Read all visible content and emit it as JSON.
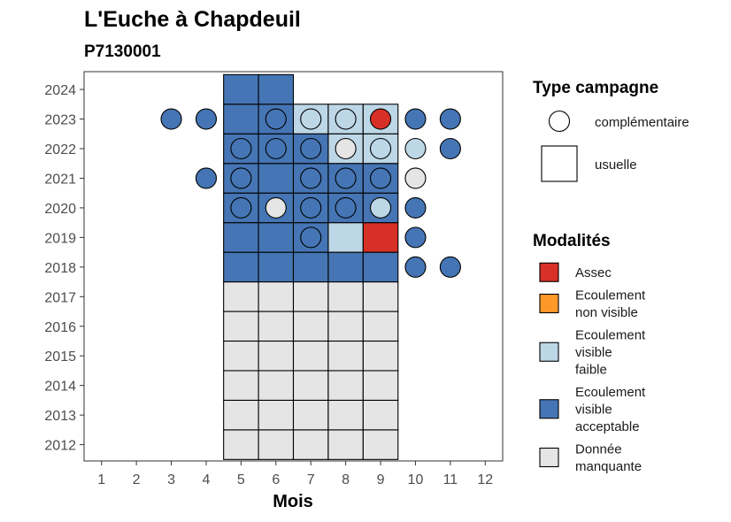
{
  "chart_data": {
    "type": "heatmap",
    "title": "L'Euche à Chapdeuil",
    "subtitle": "P7130001",
    "xlabel": "Mois",
    "ylabel": "",
    "x_ticks": [
      1,
      2,
      3,
      4,
      5,
      6,
      7,
      8,
      9,
      10,
      11,
      12
    ],
    "y_ticks": [
      2012,
      2013,
      2014,
      2015,
      2016,
      2017,
      2018,
      2019,
      2020,
      2021,
      2022,
      2023,
      2024
    ],
    "xlim": [
      0.5,
      12.5
    ],
    "ylim": [
      2011.45,
      2024.6
    ],
    "grid": false,
    "colors": {
      "Assec": "#d73027",
      "Ecoulement non visible": "#fe9929",
      "Ecoulement visible faible": "#bdd7e7",
      "Ecoulement visible acceptable": "#4575b4",
      "Donnée manquante": "#e5e5e5"
    },
    "campaign_types": {
      "complementaire": "complémentaire",
      "usuelle": "usuelle"
    },
    "usuelle": [
      {
        "year": 2012,
        "month": 5,
        "modalite": "Donnée manquante"
      },
      {
        "year": 2012,
        "month": 6,
        "modalite": "Donnée manquante"
      },
      {
        "year": 2012,
        "month": 7,
        "modalite": "Donnée manquante"
      },
      {
        "year": 2012,
        "month": 8,
        "modalite": "Donnée manquante"
      },
      {
        "year": 2012,
        "month": 9,
        "modalite": "Donnée manquante"
      },
      {
        "year": 2013,
        "month": 5,
        "modalite": "Donnée manquante"
      },
      {
        "year": 2013,
        "month": 6,
        "modalite": "Donnée manquante"
      },
      {
        "year": 2013,
        "month": 7,
        "modalite": "Donnée manquante"
      },
      {
        "year": 2013,
        "month": 8,
        "modalite": "Donnée manquante"
      },
      {
        "year": 2013,
        "month": 9,
        "modalite": "Donnée manquante"
      },
      {
        "year": 2014,
        "month": 5,
        "modalite": "Donnée manquante"
      },
      {
        "year": 2014,
        "month": 6,
        "modalite": "Donnée manquante"
      },
      {
        "year": 2014,
        "month": 7,
        "modalite": "Donnée manquante"
      },
      {
        "year": 2014,
        "month": 8,
        "modalite": "Donnée manquante"
      },
      {
        "year": 2014,
        "month": 9,
        "modalite": "Donnée manquante"
      },
      {
        "year": 2015,
        "month": 5,
        "modalite": "Donnée manquante"
      },
      {
        "year": 2015,
        "month": 6,
        "modalite": "Donnée manquante"
      },
      {
        "year": 2015,
        "month": 7,
        "modalite": "Donnée manquante"
      },
      {
        "year": 2015,
        "month": 8,
        "modalite": "Donnée manquante"
      },
      {
        "year": 2015,
        "month": 9,
        "modalite": "Donnée manquante"
      },
      {
        "year": 2016,
        "month": 5,
        "modalite": "Donnée manquante"
      },
      {
        "year": 2016,
        "month": 6,
        "modalite": "Donnée manquante"
      },
      {
        "year": 2016,
        "month": 7,
        "modalite": "Donnée manquante"
      },
      {
        "year": 2016,
        "month": 8,
        "modalite": "Donnée manquante"
      },
      {
        "year": 2016,
        "month": 9,
        "modalite": "Donnée manquante"
      },
      {
        "year": 2017,
        "month": 5,
        "modalite": "Donnée manquante"
      },
      {
        "year": 2017,
        "month": 6,
        "modalite": "Donnée manquante"
      },
      {
        "year": 2017,
        "month": 7,
        "modalite": "Donnée manquante"
      },
      {
        "year": 2017,
        "month": 8,
        "modalite": "Donnée manquante"
      },
      {
        "year": 2017,
        "month": 9,
        "modalite": "Donnée manquante"
      },
      {
        "year": 2018,
        "month": 5,
        "modalite": "Ecoulement visible acceptable"
      },
      {
        "year": 2018,
        "month": 6,
        "modalite": "Ecoulement visible acceptable"
      },
      {
        "year": 2018,
        "month": 7,
        "modalite": "Ecoulement visible acceptable"
      },
      {
        "year": 2018,
        "month": 8,
        "modalite": "Ecoulement visible acceptable"
      },
      {
        "year": 2018,
        "month": 9,
        "modalite": "Ecoulement visible acceptable"
      },
      {
        "year": 2019,
        "month": 5,
        "modalite": "Ecoulement visible acceptable"
      },
      {
        "year": 2019,
        "month": 6,
        "modalite": "Ecoulement visible acceptable"
      },
      {
        "year": 2019,
        "month": 7,
        "modalite": "Ecoulement visible acceptable"
      },
      {
        "year": 2019,
        "month": 8,
        "modalite": "Ecoulement visible faible"
      },
      {
        "year": 2019,
        "month": 9,
        "modalite": "Assec"
      },
      {
        "year": 2020,
        "month": 5,
        "modalite": "Ecoulement visible acceptable"
      },
      {
        "year": 2020,
        "month": 6,
        "modalite": "Ecoulement visible acceptable"
      },
      {
        "year": 2020,
        "month": 7,
        "modalite": "Ecoulement visible acceptable"
      },
      {
        "year": 2020,
        "month": 8,
        "modalite": "Ecoulement visible acceptable"
      },
      {
        "year": 2020,
        "month": 9,
        "modalite": "Ecoulement visible acceptable"
      },
      {
        "year": 2021,
        "month": 5,
        "modalite": "Ecoulement visible acceptable"
      },
      {
        "year": 2021,
        "month": 6,
        "modalite": "Ecoulement visible acceptable"
      },
      {
        "year": 2021,
        "month": 7,
        "modalite": "Ecoulement visible acceptable"
      },
      {
        "year": 2021,
        "month": 8,
        "modalite": "Ecoulement visible acceptable"
      },
      {
        "year": 2021,
        "month": 9,
        "modalite": "Ecoulement visible acceptable"
      },
      {
        "year": 2022,
        "month": 5,
        "modalite": "Ecoulement visible acceptable"
      },
      {
        "year": 2022,
        "month": 6,
        "modalite": "Ecoulement visible acceptable"
      },
      {
        "year": 2022,
        "month": 7,
        "modalite": "Ecoulement visible acceptable"
      },
      {
        "year": 2022,
        "month": 8,
        "modalite": "Ecoulement visible faible"
      },
      {
        "year": 2022,
        "month": 9,
        "modalite": "Ecoulement visible faible"
      },
      {
        "year": 2023,
        "month": 5,
        "modalite": "Ecoulement visible acceptable"
      },
      {
        "year": 2023,
        "month": 6,
        "modalite": "Ecoulement visible acceptable"
      },
      {
        "year": 2023,
        "month": 7,
        "modalite": "Ecoulement visible faible"
      },
      {
        "year": 2023,
        "month": 8,
        "modalite": "Ecoulement visible faible"
      },
      {
        "year": 2023,
        "month": 9,
        "modalite": "Ecoulement visible faible"
      },
      {
        "year": 2024,
        "month": 5,
        "modalite": "Ecoulement visible acceptable"
      },
      {
        "year": 2024,
        "month": 6,
        "modalite": "Ecoulement visible acceptable"
      }
    ],
    "complementaire": [
      {
        "year": 2018,
        "month": 10,
        "modalite": "Ecoulement visible acceptable"
      },
      {
        "year": 2018,
        "month": 11,
        "modalite": "Ecoulement visible acceptable"
      },
      {
        "year": 2019,
        "month": 7,
        "modalite": "Ecoulement visible acceptable"
      },
      {
        "year": 2019,
        "month": 10,
        "modalite": "Ecoulement visible acceptable"
      },
      {
        "year": 2020,
        "month": 5,
        "modalite": "Ecoulement visible acceptable"
      },
      {
        "year": 2020,
        "month": 6,
        "modalite": "Donnée manquante"
      },
      {
        "year": 2020,
        "month": 7,
        "modalite": "Ecoulement visible acceptable"
      },
      {
        "year": 2020,
        "month": 8,
        "modalite": "Ecoulement visible acceptable"
      },
      {
        "year": 2020,
        "month": 9,
        "modalite": "Ecoulement visible faible"
      },
      {
        "year": 2020,
        "month": 10,
        "modalite": "Ecoulement visible acceptable"
      },
      {
        "year": 2021,
        "month": 4,
        "modalite": "Ecoulement visible acceptable"
      },
      {
        "year": 2021,
        "month": 5,
        "modalite": "Ecoulement visible acceptable"
      },
      {
        "year": 2021,
        "month": 7,
        "modalite": "Ecoulement visible acceptable"
      },
      {
        "year": 2021,
        "month": 8,
        "modalite": "Ecoulement visible acceptable"
      },
      {
        "year": 2021,
        "month": 9,
        "modalite": "Ecoulement visible acceptable"
      },
      {
        "year": 2021,
        "month": 10,
        "modalite": "Donnée manquante"
      },
      {
        "year": 2022,
        "month": 5,
        "modalite": "Ecoulement visible acceptable"
      },
      {
        "year": 2022,
        "month": 6,
        "modalite": "Ecoulement visible acceptable"
      },
      {
        "year": 2022,
        "month": 7,
        "modalite": "Ecoulement visible acceptable"
      },
      {
        "year": 2022,
        "month": 8,
        "modalite": "Donnée manquante"
      },
      {
        "year": 2022,
        "month": 9,
        "modalite": "Ecoulement visible faible"
      },
      {
        "year": 2022,
        "month": 10,
        "modalite": "Ecoulement visible faible"
      },
      {
        "year": 2022,
        "month": 11,
        "modalite": "Ecoulement visible acceptable"
      },
      {
        "year": 2023,
        "month": 3,
        "modalite": "Ecoulement visible acceptable"
      },
      {
        "year": 2023,
        "month": 4,
        "modalite": "Ecoulement visible acceptable"
      },
      {
        "year": 2023,
        "month": 6,
        "modalite": "Ecoulement visible acceptable"
      },
      {
        "year": 2023,
        "month": 7,
        "modalite": "Ecoulement visible faible"
      },
      {
        "year": 2023,
        "month": 8,
        "modalite": "Ecoulement visible faible"
      },
      {
        "year": 2023,
        "month": 9,
        "modalite": "Assec"
      },
      {
        "year": 2023,
        "month": 10,
        "modalite": "Ecoulement visible acceptable"
      },
      {
        "year": 2023,
        "month": 11,
        "modalite": "Ecoulement visible acceptable"
      }
    ],
    "legend": {
      "campaign_title": "Type campagne",
      "modalites_title": "Modalités",
      "modalites": [
        {
          "key": "Assec",
          "lines": [
            "Assec"
          ]
        },
        {
          "key": "Ecoulement non visible",
          "lines": [
            "Ecoulement",
            "non visible"
          ]
        },
        {
          "key": "Ecoulement visible faible",
          "lines": [
            "Ecoulement",
            "visible",
            "faible"
          ]
        },
        {
          "key": "Ecoulement visible acceptable",
          "lines": [
            "Ecoulement",
            "visible",
            "acceptable"
          ]
        },
        {
          "key": "Donnée manquante",
          "lines": [
            "Donnée",
            "manquante"
          ]
        }
      ]
    },
    "legend_position": "right"
  }
}
